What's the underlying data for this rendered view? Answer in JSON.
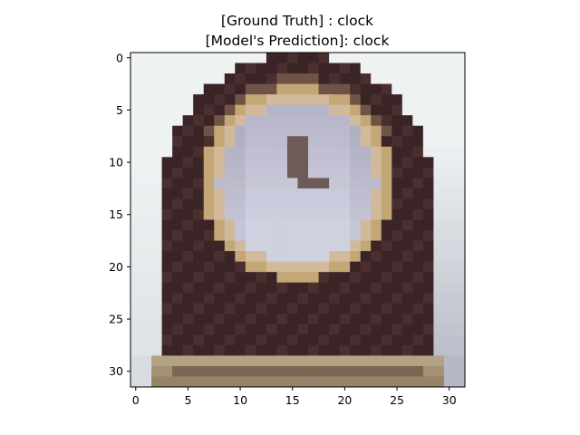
{
  "chart_data": {
    "type": "heatmap",
    "title_lines": [
      "[Ground Truth] : clock",
      "[Model's Prediction]: clock"
    ],
    "x_ticks": [
      0,
      5,
      10,
      15,
      20,
      25,
      30
    ],
    "y_ticks": [
      0,
      5,
      10,
      15,
      20,
      25,
      30
    ],
    "xlim": [
      -0.5,
      31.5
    ],
    "ylim": [
      31.5,
      -0.5
    ],
    "image_size": [
      32,
      32
    ],
    "colors": {
      "background": "#eef2f3",
      "bg_shadow_left": "#c9d2d6",
      "bg_shadow_right": "#a9aab9",
      "case_dark": "#3b2426",
      "case_mid": "#4a2f31",
      "rim_gold": "#c4a776",
      "rim_light": "#d8c7b0",
      "face": "#cfd0e0",
      "face_shadow": "#9a97ad",
      "hand": "#6e5a58",
      "base": "#a59274",
      "base_dark": "#5c4a3c"
    }
  }
}
